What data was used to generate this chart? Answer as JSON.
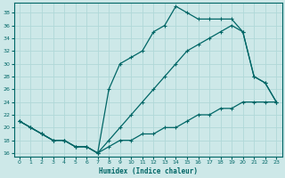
{
  "xlabel": "Humidex (Indice chaleur)",
  "bg_color": "#cde8e8",
  "line_color": "#006666",
  "grid_color": "#b0d8d8",
  "xlim": [
    -0.5,
    23.5
  ],
  "ylim": [
    15.5,
    39.5
  ],
  "xticks": [
    0,
    1,
    2,
    3,
    4,
    5,
    6,
    7,
    8,
    9,
    10,
    11,
    12,
    13,
    14,
    15,
    16,
    17,
    18,
    19,
    20,
    21,
    22,
    23
  ],
  "yticks": [
    16,
    18,
    20,
    22,
    24,
    26,
    28,
    30,
    32,
    34,
    36,
    38
  ],
  "line1_x": [
    0,
    1,
    2,
    3,
    4,
    5,
    6,
    7,
    8,
    9,
    10,
    11,
    12,
    13,
    14,
    15,
    16,
    17,
    18,
    19,
    20,
    21,
    22,
    23
  ],
  "line1_y": [
    21,
    20,
    19,
    18,
    18,
    17,
    17,
    16,
    26,
    30,
    31,
    32,
    35,
    36,
    39,
    38,
    37,
    37,
    37,
    37,
    35,
    28,
    27,
    24
  ],
  "line2_x": [
    0,
    1,
    2,
    3,
    4,
    5,
    6,
    7,
    8,
    9,
    10,
    11,
    12,
    13,
    14,
    15,
    16,
    17,
    18,
    19,
    20,
    21,
    22,
    23
  ],
  "line2_y": [
    21,
    20,
    19,
    18,
    18,
    17,
    17,
    16,
    18,
    20,
    22,
    24,
    26,
    28,
    30,
    32,
    33,
    34,
    35,
    36,
    35,
    28,
    27,
    24
  ],
  "line3_x": [
    0,
    1,
    2,
    3,
    4,
    5,
    6,
    7,
    8,
    9,
    10,
    11,
    12,
    13,
    14,
    15,
    16,
    17,
    18,
    19,
    20,
    21,
    22,
    23
  ],
  "line3_y": [
    21,
    20,
    19,
    18,
    18,
    17,
    17,
    16,
    17,
    18,
    18,
    19,
    19,
    20,
    20,
    21,
    22,
    22,
    23,
    23,
    24,
    24,
    24,
    24
  ]
}
